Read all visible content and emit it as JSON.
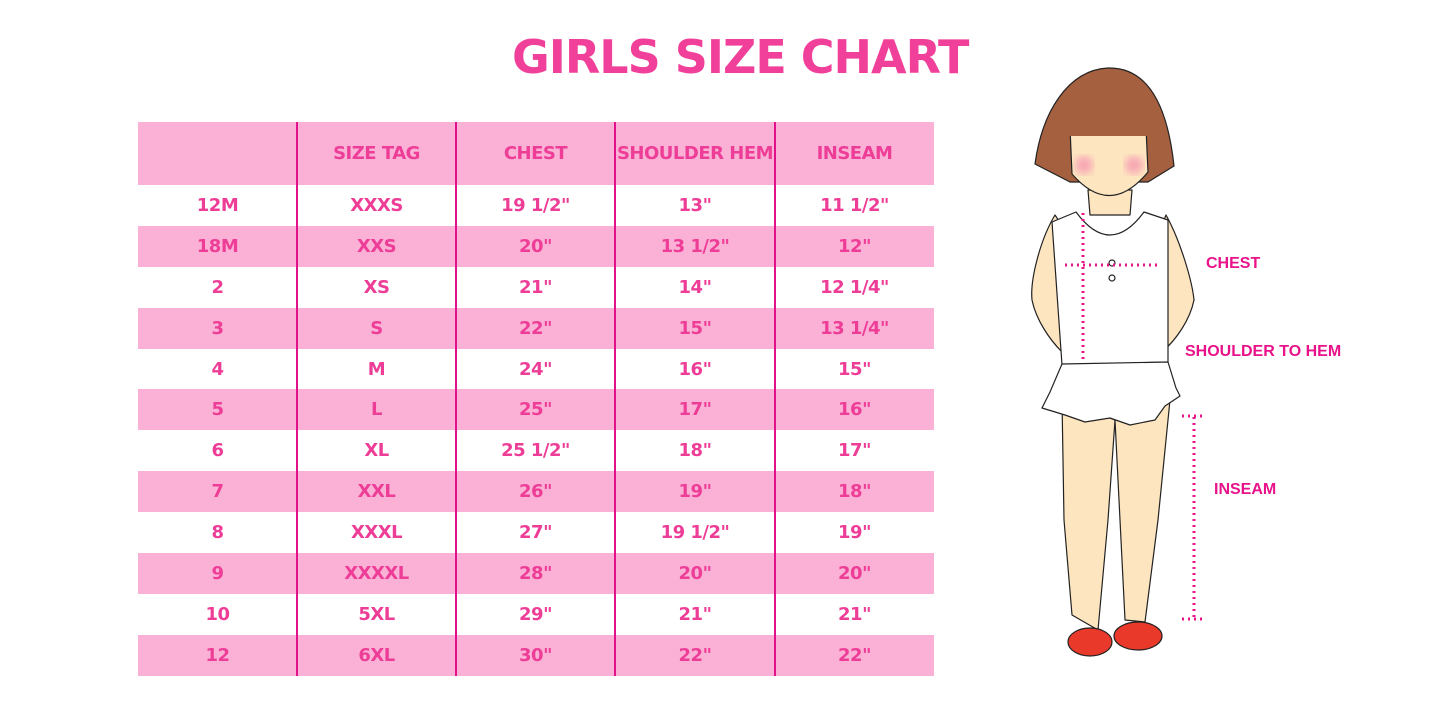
{
  "title": "GIRLS SIZE CHART",
  "colors": {
    "accent": "#ee3d97",
    "row_pink": "#fbb0d6",
    "divider": "#e0118a",
    "hair": "#a5603f",
    "skin": "#fde5c0",
    "shoes": "#e8392a"
  },
  "chart_data": {
    "type": "table",
    "title": "GIRLS SIZE CHART",
    "columns": [
      "",
      "SIZE TAG",
      "CHEST",
      "SHOULDER HEM",
      "INSEAM"
    ],
    "rows": [
      [
        "12M",
        "XXXS",
        "19 1/2\"",
        "13\"",
        "11 1/2\""
      ],
      [
        "18M",
        "XXS",
        "20\"",
        "13 1/2\"",
        "12\""
      ],
      [
        "2",
        "XS",
        "21\"",
        "14\"",
        "12 1/4\""
      ],
      [
        "3",
        "S",
        "22\"",
        "15\"",
        "13 1/4\""
      ],
      [
        "4",
        "M",
        "24\"",
        "16\"",
        "15\""
      ],
      [
        "5",
        "L",
        "25\"",
        "17\"",
        "16\""
      ],
      [
        "6",
        "XL",
        "25 1/2\"",
        "18\"",
        "17\""
      ],
      [
        "7",
        "XXL",
        "26\"",
        "19\"",
        "18\""
      ],
      [
        "8",
        "XXXL",
        "27\"",
        "19 1/2\"",
        "19\""
      ],
      [
        "9",
        "XXXXL",
        "28\"",
        "20\"",
        "20\""
      ],
      [
        "10",
        "5XL",
        "29\"",
        "21\"",
        "21\""
      ],
      [
        "12",
        "6XL",
        "30\"",
        "22\"",
        "22\""
      ]
    ]
  },
  "illustration": {
    "labels": {
      "chest": "CHEST",
      "shoulder_to_hem": "SHOULDER TO HEM",
      "inseam": "INSEAM"
    }
  }
}
